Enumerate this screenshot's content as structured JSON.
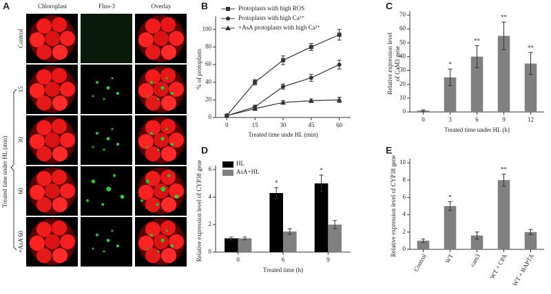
{
  "panel_a": {
    "label": "A",
    "columns": [
      "Chloroplast",
      "Fluo-3",
      "Overlay"
    ],
    "rows": [
      "Control",
      "15",
      "30",
      "60",
      "+AsA 60"
    ],
    "axis_label": "Treated time under HL (min)"
  },
  "chart_data": [
    {
      "type": "line",
      "panel": "B",
      "x": [
        0,
        15,
        30,
        45,
        60
      ],
      "xlim": [
        -6,
        66
      ],
      "xticks": [
        0,
        15,
        30,
        45,
        60
      ],
      "ylim": [
        0,
        110
      ],
      "yticks": [
        0,
        20,
        40,
        60,
        80,
        100
      ],
      "xlabel": "Treated time unde HL (min)",
      "ylabel": "% of protoplasts",
      "legend": "upper left",
      "series": [
        {
          "name": "Protoplasts with high ROS",
          "color": "#333333",
          "marker": "square",
          "values": [
            2,
            40,
            65,
            80,
            94
          ],
          "errors": [
            1,
            3,
            5,
            4,
            6
          ]
        },
        {
          "name": "Protoplasts with high Ca²⁺",
          "color": "#333333",
          "marker": "circle",
          "values": [
            2,
            12,
            35,
            45,
            60
          ],
          "errors": [
            1,
            2,
            3,
            4,
            5
          ]
        },
        {
          "name": "+AsA protoplasts with high Ca²⁺",
          "color": "#333333",
          "marker": "triangle",
          "values": [
            2,
            10,
            17,
            19,
            20
          ],
          "errors": [
            1,
            2,
            2,
            2,
            3
          ]
        }
      ]
    },
    {
      "type": "bar",
      "panel": "C",
      "categories": [
        "0",
        "3",
        "6",
        "9",
        "12"
      ],
      "values": [
        1,
        25,
        40,
        55,
        35
      ],
      "errors": [
        0.5,
        6,
        8,
        10,
        8
      ],
      "significance": [
        null,
        "*",
        "**",
        "**",
        "**"
      ],
      "color": "#808080",
      "ylim": [
        0,
        70
      ],
      "yticks": [
        0,
        10,
        20,
        30,
        40,
        50,
        60,
        70
      ],
      "xlabel": "Treated time under HL (h)",
      "ylabel": [
        "Relative expression level",
        "of CaM3 gene"
      ]
    },
    {
      "type": "grouped_bar",
      "panel": "D",
      "categories": [
        "0",
        "6",
        "9"
      ],
      "ylim": [
        0,
        6
      ],
      "yticks": [
        0,
        2,
        4,
        6
      ],
      "xlabel": "Treated time (h)",
      "ylabel": "Relative expression level of CYP38 gene",
      "legend": "upper left",
      "series": [
        {
          "name": "HL",
          "color": "#000000",
          "values": [
            1,
            4.3,
            5
          ],
          "errors": [
            0.1,
            0.4,
            0.6
          ],
          "significance": [
            null,
            "*",
            "*"
          ]
        },
        {
          "name": "AsA+HL",
          "color": "#808080",
          "values": [
            1,
            1.5,
            2
          ],
          "errors": [
            0.1,
            0.2,
            0.3
          ]
        }
      ]
    },
    {
      "type": "bar",
      "panel": "E",
      "categories": [
        "Control",
        "WT",
        "cam3",
        "WT + CPA",
        "WT + BAPTA"
      ],
      "values": [
        1,
        5,
        1.6,
        8,
        2
      ],
      "errors": [
        0.2,
        0.5,
        0.4,
        0.7,
        0.3
      ],
      "significance": [
        null,
        "*",
        null,
        "**",
        null
      ],
      "color": "#808080",
      "ylim": [
        0,
        10
      ],
      "yticks": [
        0,
        2,
        4,
        6,
        8,
        10
      ],
      "xtick_rotation": -60,
      "ylabel": "Relative expression level of CYP38 gene"
    }
  ]
}
